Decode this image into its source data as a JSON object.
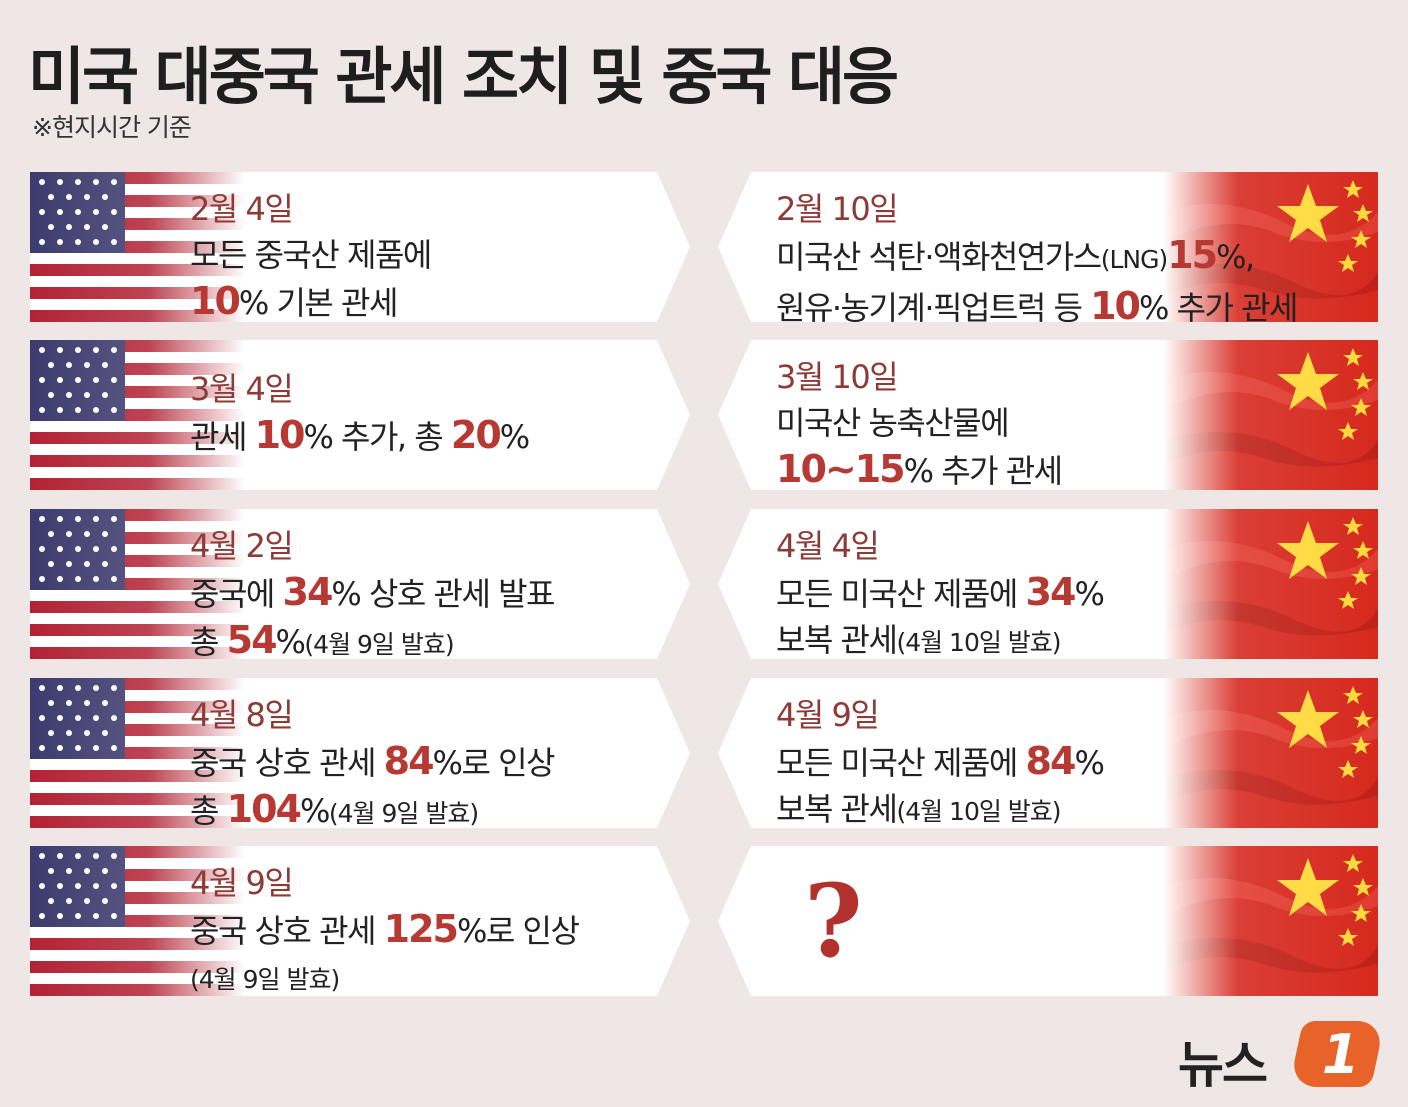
{
  "header": {
    "title": "미국 대중국 관세 조치 및 중국 대응",
    "subtitle": "※현지시간 기준"
  },
  "us": [
    {
      "date": "2월 4일",
      "line1": "모든 중국산 제품에",
      "l2_hl": "10",
      "l2_after": "% 기본 관세"
    },
    {
      "date": "3월 4일",
      "l1_pre": "관세 ",
      "l1_hl1": "10",
      "l1_mid": "% 추가, 총 ",
      "l1_hl2": "20",
      "l1_end": "%"
    },
    {
      "date": "4월 2일",
      "l1_pre": "중국에 ",
      "l1_hl": "34",
      "l1_after": "% 상호 관세 발표",
      "l2_pre": "총 ",
      "l2_hl": "54",
      "l2_pct": "%",
      "l2_small": "(4월 9일 발효)"
    },
    {
      "date": "4월 8일",
      "l1_pre": "중국 상호 관세 ",
      "l1_hl": "84",
      "l1_after": "%로 인상",
      "l2_pre": "총 ",
      "l2_hl": "104",
      "l2_pct": "%",
      "l2_small": "(4월 9일 발효)"
    },
    {
      "date": "4월 9일",
      "l1_pre": "중국 상호 관세 ",
      "l1_hl": "125",
      "l1_after": "%로 인상",
      "l2_small": "(4월 9일 발효)"
    }
  ],
  "cn": [
    {
      "date": "2월 10일",
      "l1_pre": "미국산 석탄·액화천연가스",
      "l1_small": "(LNG)",
      "l1_hl": "15",
      "l1_after": "%,",
      "l2_pre": "원유·농기계·픽업트럭 등 ",
      "l2_hl": "10",
      "l2_after": "% 추가 관세"
    },
    {
      "date": "3월 10일",
      "line1": "미국산 농축산물에",
      "l2_hl": "10~15",
      "l2_after": "% 추가 관세"
    },
    {
      "date": "4월 4일",
      "l1_pre": "모든 미국산 제품에 ",
      "l1_hl": "34",
      "l1_after": "%",
      "l2_pre": "보복 관세",
      "l2_small": "(4월 10일 발효)"
    },
    {
      "date": "4월 9일",
      "l1_pre": "모든 미국산 제품에 ",
      "l1_hl": "84",
      "l1_after": "%",
      "l2_pre": "보복 관세",
      "l2_small": "(4월 10일 발효)"
    },
    {
      "question": "?"
    }
  ],
  "logo": {
    "text": "뉴스",
    "badge": "1"
  },
  "colors": {
    "accent": "#b63a33",
    "date": "#8c3b37",
    "background": "#eee7e6",
    "logo": "#e8632a"
  }
}
